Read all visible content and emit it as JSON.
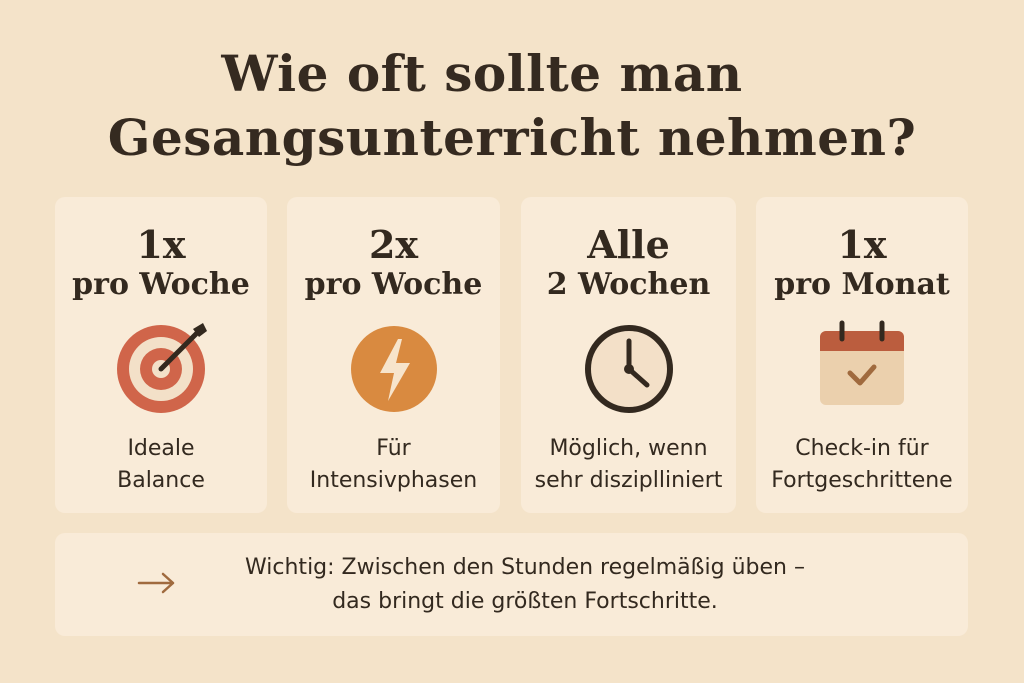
{
  "title": {
    "line1": "Wie oft sollte man",
    "line2": "Gesangsunterricht nehmen?"
  },
  "cards": [
    {
      "big": "1x",
      "sub": "pro Woche",
      "icon": "target-icon",
      "desc1": "Ideale",
      "desc2": "Balance"
    },
    {
      "big": "2x",
      "sub": "pro Woche",
      "icon": "lightning-icon",
      "desc1": "Für",
      "desc2": "Intensivphasen"
    },
    {
      "big": "Alle",
      "sub": "2 Wochen",
      "icon": "clock-icon",
      "desc1": "Möglich, wenn",
      "desc2": "sehr disziplliniert"
    },
    {
      "big": "1x",
      "sub": "pro Monat",
      "icon": "calendar-check-icon",
      "desc1": "Check-in für",
      "desc2": "Fortgeschrittene"
    }
  ],
  "note": {
    "icon": "arrow-right-icon",
    "line1": "Wichtig: Zwischen den Stunden regelmäßig üben –",
    "line2": "das bringt die größten Fortschritte."
  },
  "colors": {
    "background": "#f4e3c9",
    "card": "#f9ebd8",
    "target": "#d0654a",
    "lightning": "#d98a40",
    "calendar_top": "#bb5d3e",
    "text": "#33291f"
  }
}
